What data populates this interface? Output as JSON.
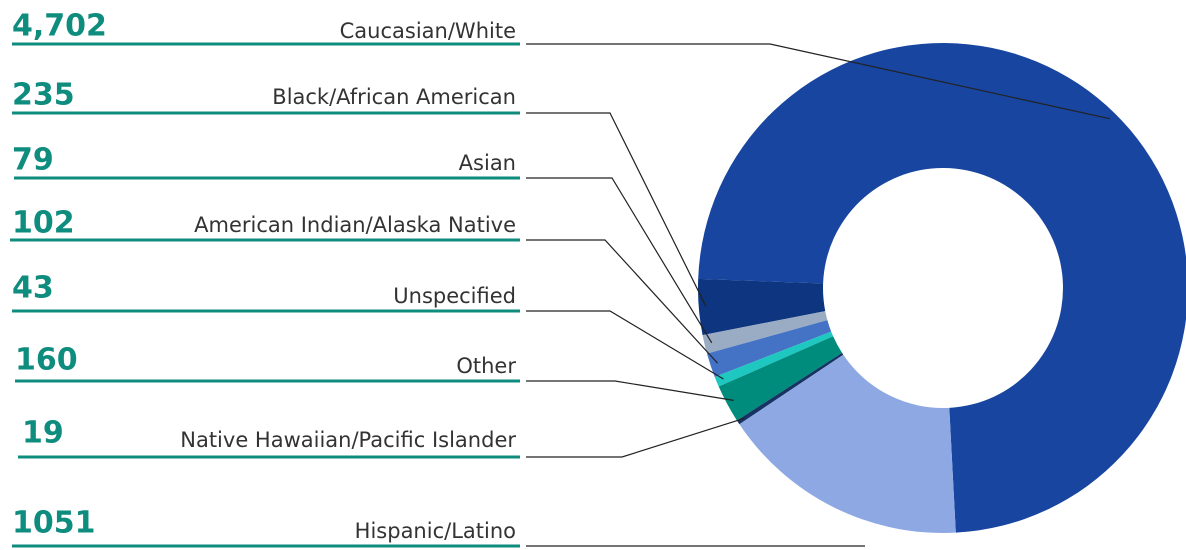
{
  "chart_data": {
    "type": "donut",
    "categories": [
      "Caucasian/White",
      "Black/African American",
      "Asian",
      "American Indian/Alaska Native",
      "Unspecified",
      "Other",
      "Native Hawaiian/Pacific Islander",
      "Hispanic/Latino"
    ],
    "values": [
      4702,
      235,
      79,
      102,
      43,
      160,
      19,
      1051
    ],
    "value_labels": [
      "4,702",
      "235",
      "79",
      "102",
      "43",
      "160",
      "19",
      "1051"
    ],
    "colors": [
      "#1745a0",
      "#0d3580",
      "#9aabc4",
      "#4472c4",
      "#1ec8c0",
      "#008c7c",
      "#163463",
      "#8ea8e3"
    ]
  }
}
